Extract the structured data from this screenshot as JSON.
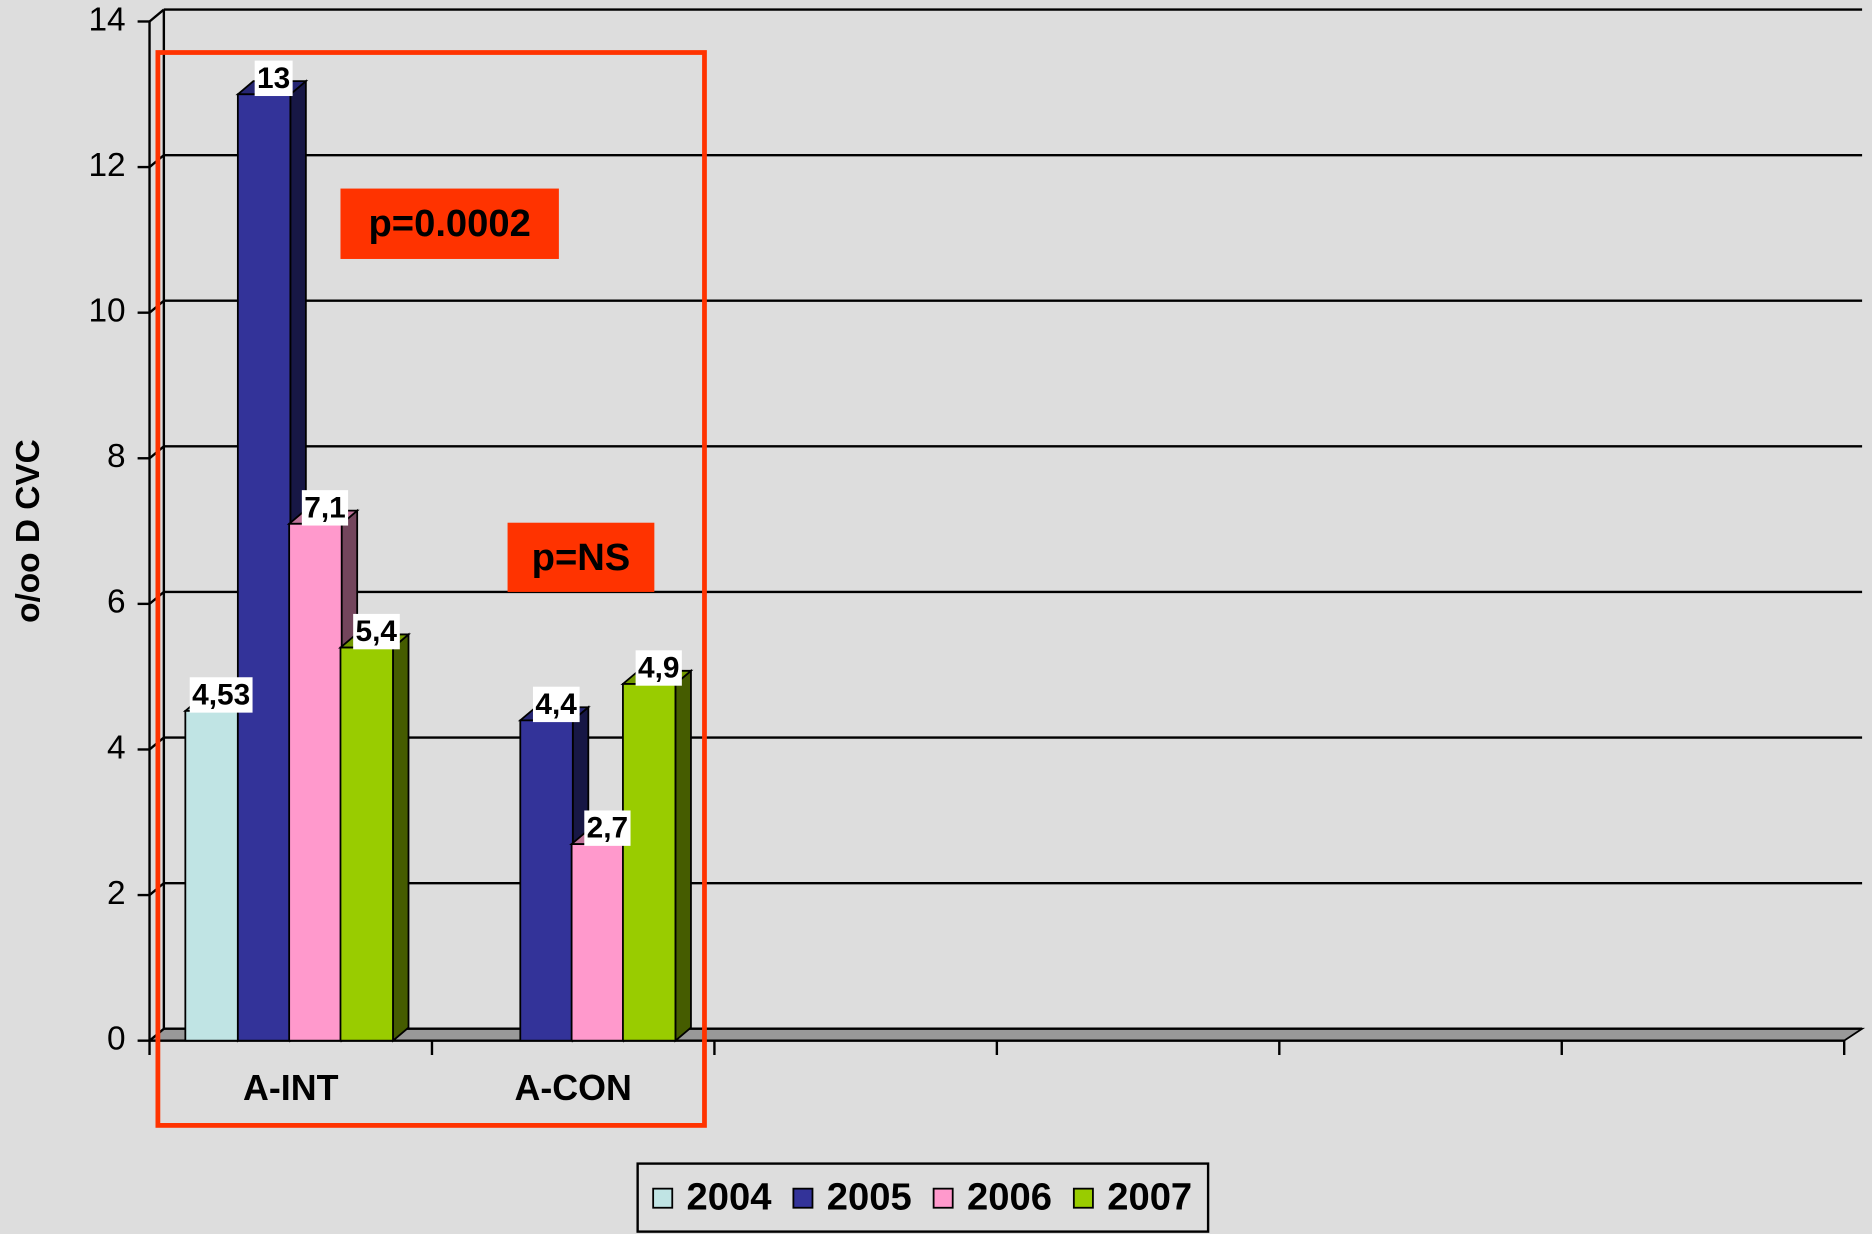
{
  "chart_data": {
    "type": "bar3d",
    "y_label": "o/oo D CVC",
    "categories": [
      "A-INT",
      "A-CON",
      null,
      null,
      null,
      null
    ],
    "series": [
      {
        "name": "2004",
        "color": "#c0e4e4",
        "values": [
          4.53,
          null,
          null,
          null,
          null,
          null
        ],
        "value_labels": [
          "4,53",
          null,
          null,
          null,
          null,
          null
        ]
      },
      {
        "name": "2005",
        "color": "#333399",
        "values": [
          13,
          4.4,
          null,
          null,
          null,
          null
        ],
        "value_labels": [
          "13",
          "4,4",
          null,
          null,
          null,
          null
        ]
      },
      {
        "name": "2006",
        "color": "#ff99cc",
        "values": [
          7.1,
          2.7,
          null,
          null,
          null,
          null
        ],
        "value_labels": [
          "7,1",
          "2,7",
          null,
          null,
          null,
          null
        ]
      },
      {
        "name": "2007",
        "color": "#99cc00",
        "values": [
          5.4,
          4.9,
          null,
          null,
          null,
          null
        ],
        "value_labels": [
          "5,4",
          "4,9",
          null,
          null,
          null,
          null
        ]
      }
    ],
    "ylim": [
      0,
      14
    ],
    "yticks": [
      0,
      2,
      4,
      6,
      8,
      10,
      12,
      14
    ],
    "grid": true,
    "legend": "bottom",
    "annotations": [
      "p=0.0002",
      "p=NS"
    ]
  }
}
